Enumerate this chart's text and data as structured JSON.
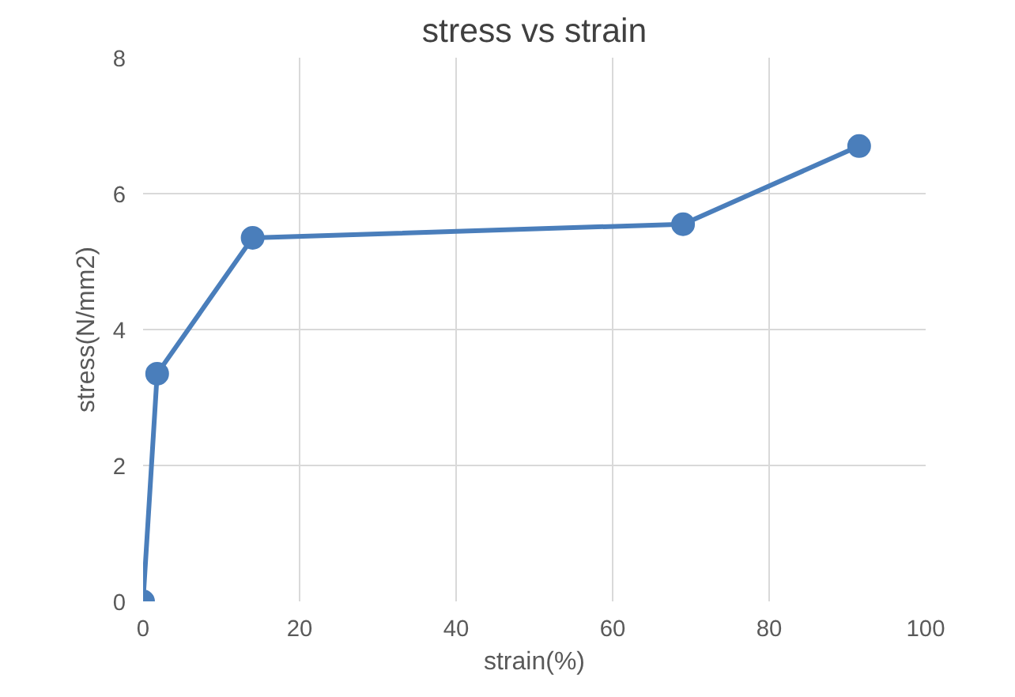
{
  "chart_data": {
    "type": "line",
    "title": "stress vs strain",
    "xlabel": "strain(%)",
    "ylabel": "stress(N/mm2)",
    "x": [
      0,
      1.8,
      14,
      69,
      91.5
    ],
    "marker": "circle",
    "series": [
      {
        "color": "#4a7ebb",
        "values": [
          0,
          3.35,
          5.35,
          5.55,
          6.7
        ]
      }
    ],
    "xlim": [
      0,
      100
    ],
    "ylim": [
      0,
      8
    ],
    "xticks": [
      0,
      20,
      40,
      60,
      80,
      100
    ],
    "yticks": [
      0,
      2,
      4,
      6,
      8
    ],
    "grid": true
  }
}
